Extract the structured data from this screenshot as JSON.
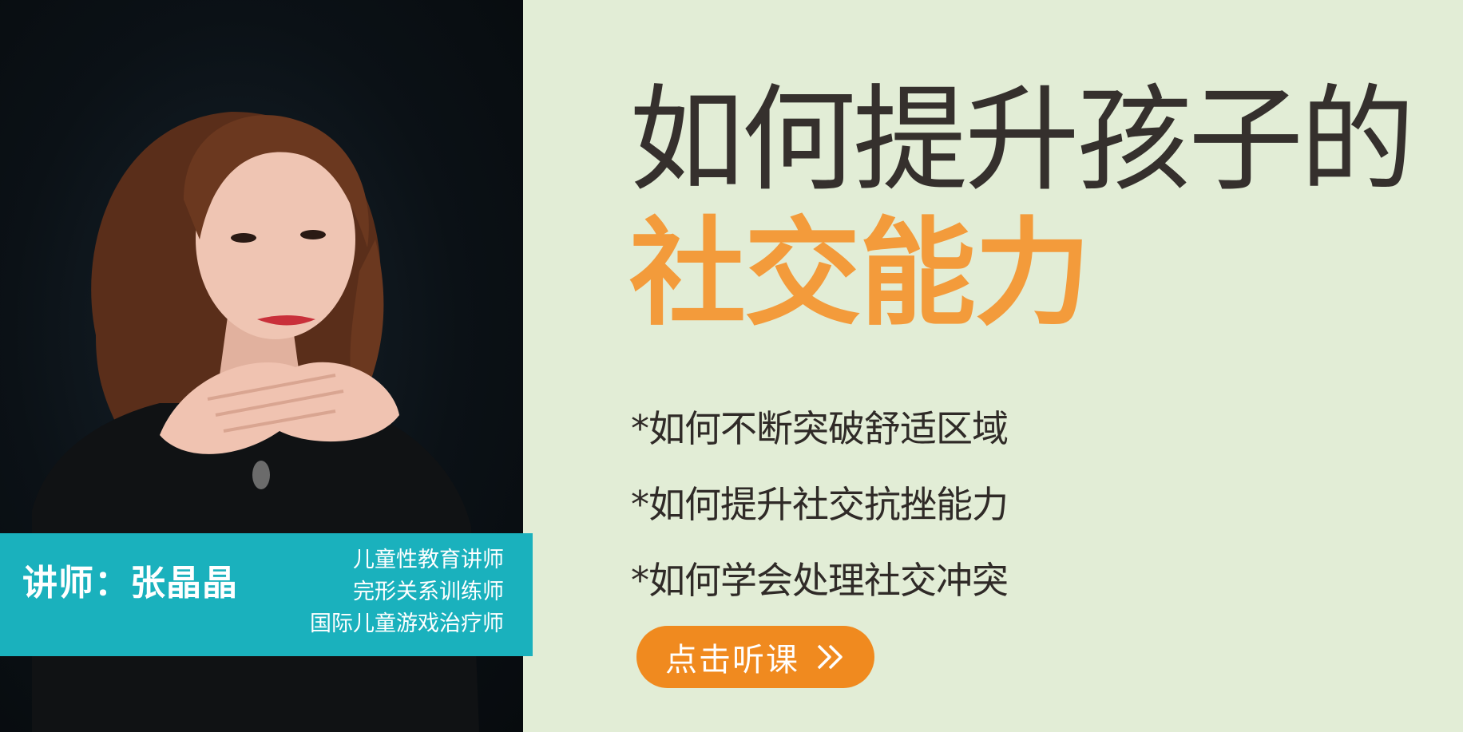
{
  "headline": {
    "line1": "如何提升孩子的",
    "line2": "社交能力"
  },
  "bullets": [
    "*如何不断突破舒适区域",
    "*如何提升社交抗挫能力",
    "*如何学会处理社交冲突"
  ],
  "cta": {
    "label": "点击听课",
    "icon": "double-chevron-right-icon"
  },
  "instructor": {
    "name": "讲师：张晶晶",
    "titles": [
      "儿童性教育讲师",
      "完形关系训练师",
      "国际儿童游戏治疗师"
    ]
  },
  "colors": {
    "background": "#e2edd6",
    "accent_orange": "#f39b3b",
    "button_orange": "#f08a1f",
    "banner_teal": "#1ab1bd",
    "text_dark": "#35302d"
  }
}
